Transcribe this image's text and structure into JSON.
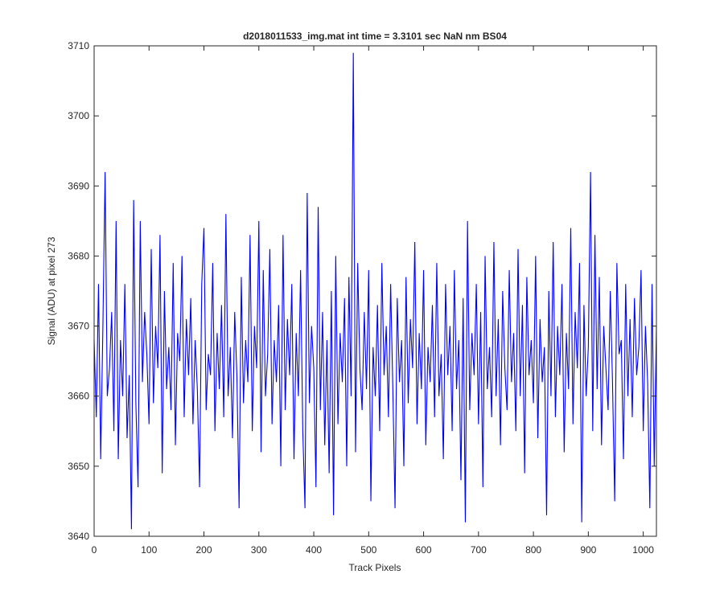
{
  "chart_data": {
    "type": "line",
    "title": "d2018011533_img.mat int time = 3.3101 sec  NaN nm BS04",
    "x_label": "Track Pixels",
    "y_label": "Signal (ADU) at pixel 273",
    "xlim": [
      0,
      1024
    ],
    "ylim": [
      3640,
      3710
    ],
    "xticks": [
      0,
      100,
      200,
      300,
      400,
      500,
      600,
      700,
      800,
      900,
      1000
    ],
    "yticks": [
      3640,
      3650,
      3660,
      3670,
      3680,
      3690,
      3700,
      3710
    ],
    "grid": false,
    "x": [
      0,
      4,
      8,
      12,
      16,
      20,
      24,
      28,
      32,
      36,
      40,
      44,
      48,
      52,
      56,
      60,
      64,
      68,
      72,
      76,
      80,
      84,
      88,
      92,
      96,
      100,
      104,
      108,
      112,
      116,
      120,
      124,
      128,
      132,
      136,
      140,
      144,
      148,
      152,
      156,
      160,
      164,
      168,
      172,
      176,
      180,
      184,
      188,
      192,
      196,
      200,
      204,
      208,
      212,
      216,
      220,
      224,
      228,
      232,
      236,
      240,
      244,
      248,
      252,
      256,
      260,
      264,
      268,
      272,
      276,
      280,
      284,
      288,
      292,
      296,
      300,
      304,
      308,
      312,
      316,
      320,
      324,
      328,
      332,
      336,
      340,
      344,
      348,
      352,
      356,
      360,
      364,
      368,
      372,
      376,
      380,
      384,
      388,
      392,
      396,
      400,
      404,
      408,
      412,
      416,
      420,
      424,
      428,
      432,
      436,
      440,
      444,
      448,
      452,
      456,
      460,
      464,
      468,
      472,
      476,
      480,
      484,
      488,
      492,
      496,
      500,
      504,
      508,
      512,
      516,
      520,
      524,
      528,
      532,
      536,
      540,
      544,
      548,
      552,
      556,
      560,
      564,
      568,
      572,
      576,
      580,
      584,
      588,
      592,
      596,
      600,
      604,
      608,
      612,
      616,
      620,
      624,
      628,
      632,
      636,
      640,
      644,
      648,
      652,
      656,
      660,
      664,
      668,
      672,
      676,
      680,
      684,
      688,
      692,
      696,
      700,
      704,
      708,
      712,
      716,
      720,
      724,
      728,
      732,
      736,
      740,
      744,
      748,
      752,
      756,
      760,
      764,
      768,
      772,
      776,
      780,
      784,
      788,
      792,
      796,
      800,
      804,
      808,
      812,
      816,
      820,
      824,
      828,
      832,
      836,
      840,
      844,
      848,
      852,
      856,
      860,
      864,
      868,
      872,
      876,
      880,
      884,
      888,
      892,
      896,
      900,
      904,
      908,
      912,
      916,
      920,
      924,
      928,
      932,
      936,
      940,
      944,
      948,
      952,
      956,
      960,
      964,
      968,
      972,
      976,
      980,
      984,
      988,
      992,
      996,
      1000,
      1004,
      1008,
      1012,
      1016,
      1020,
      1024
    ],
    "series": [
      {
        "color": "#0000ff",
        "values": [
          3668,
          3657,
          3676,
          3651,
          3670,
          3692,
          3660,
          3664,
          3672,
          3655,
          3685,
          3651,
          3668,
          3660,
          3676,
          3654,
          3663,
          3641,
          3688,
          3659,
          3647,
          3685,
          3662,
          3672,
          3666,
          3656,
          3681,
          3659,
          3670,
          3664,
          3683,
          3649,
          3675,
          3661,
          3667,
          3658,
          3679,
          3653,
          3669,
          3665,
          3680,
          3657,
          3671,
          3663,
          3674,
          3656,
          3668,
          3661,
          3647,
          3676,
          3684,
          3658,
          3666,
          3663,
          3679,
          3655,
          3669,
          3661,
          3673,
          3657,
          3686,
          3660,
          3667,
          3654,
          3672,
          3663,
          3644,
          3677,
          3659,
          3668,
          3662,
          3683,
          3655,
          3670,
          3664,
          3685,
          3652,
          3678,
          3660,
          3666,
          3681,
          3656,
          3668,
          3662,
          3673,
          3650,
          3683,
          3658,
          3671,
          3663,
          3676,
          3651,
          3669,
          3660,
          3678,
          3655,
          3644,
          3689,
          3659,
          3670,
          3664,
          3647,
          3687,
          3658,
          3672,
          3653,
          3668,
          3649,
          3675,
          3643,
          3680,
          3656,
          3669,
          3662,
          3674,
          3650,
          3677,
          3660,
          3709,
          3652,
          3679,
          3664,
          3658,
          3672,
          3661,
          3678,
          3645,
          3667,
          3660,
          3673,
          3655,
          3679,
          3663,
          3670,
          3657,
          3676,
          3661,
          3644,
          3674,
          3662,
          3668,
          3650,
          3677,
          3659,
          3671,
          3664,
          3682,
          3656,
          3669,
          3661,
          3678,
          3653,
          3667,
          3662,
          3673,
          3657,
          3679,
          3660,
          3666,
          3651,
          3676,
          3663,
          3670,
          3655,
          3678,
          3661,
          3668,
          3648,
          3674,
          3642,
          3685,
          3658,
          3669,
          3663,
          3676,
          3656,
          3672,
          3647,
          3680,
          3661,
          3667,
          3657,
          3682,
          3660,
          3671,
          3653,
          3675,
          3664,
          3658,
          3678,
          3662,
          3669,
          3655,
          3681,
          3660,
          3673,
          3649,
          3677,
          3663,
          3668,
          3659,
          3680,
          3654,
          3671,
          3662,
          3667,
          3643,
          3675,
          3660,
          3682,
          3657,
          3670,
          3663,
          3676,
          3652,
          3669,
          3661,
          3684,
          3656,
          3672,
          3664,
          3679,
          3642,
          3673,
          3660,
          3667,
          3692,
          3655,
          3683,
          3661,
          3677,
          3653,
          3670,
          3664,
          3658,
          3675,
          3662,
          3645,
          3679,
          3666,
          3668,
          3651,
          3676,
          3660,
          3671,
          3657,
          3674,
          3663,
          3667,
          3678,
          3655,
          3670,
          3662,
          3644,
          3676,
          3650,
          3670
        ]
      }
    ]
  }
}
